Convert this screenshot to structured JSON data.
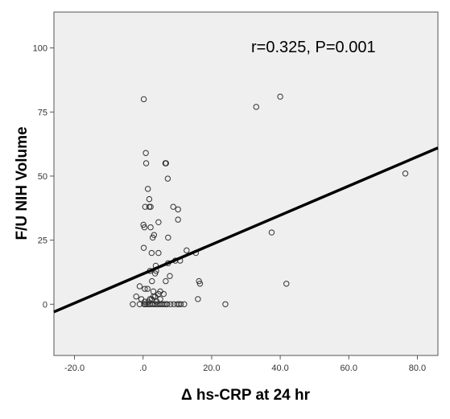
{
  "chart_data": {
    "type": "scatter",
    "title": "",
    "xlabel": "Δ hs-CRP at 24 hr",
    "ylabel": "F/U NIH Volume",
    "xlim": [
      -26,
      86
    ],
    "ylim": [
      -20,
      114
    ],
    "xticks": [
      -20,
      0,
      20,
      40,
      60,
      80
    ],
    "xtick_labels": [
      "-20.0",
      ".0",
      "20.0",
      "40.0",
      "60.0",
      "80.0"
    ],
    "yticks": [
      0,
      25,
      50,
      75,
      100
    ],
    "ytick_labels": [
      "0",
      "25",
      "50",
      "75",
      "100"
    ],
    "grid": false,
    "legend": "none",
    "background_color": "#efefef",
    "marker_color": "#333333",
    "annotation": "r=0.325, P=0.001",
    "fit_line": {
      "x": [
        -26,
        86
      ],
      "y": [
        -3,
        61
      ],
      "color": "#000000"
    },
    "series": [
      {
        "x": [
          0.2,
          0.8,
          0.9,
          1.8,
          2.2,
          6.5,
          33,
          40,
          1.4,
          6.7,
          6.6,
          7.2,
          0.6,
          1.8,
          0.1,
          0.4,
          8.8,
          10.2,
          4.5,
          10.2,
          2.2,
          3.2,
          7.3,
          0.2,
          2.8,
          12.7,
          15.4,
          76.5,
          37.5,
          4.5,
          2.5,
          3.7,
          7.3,
          9.4,
          3.8,
          10.8,
          16.3,
          16.6,
          41.8,
          2.0,
          3.5,
          2.6,
          7.8,
          6.6,
          -1.0,
          1.3,
          3.0,
          5.0,
          6.0,
          0.5,
          -2.0,
          3.5,
          2.5,
          4.5,
          5.0,
          1.5,
          3.0,
          -0.5,
          0.5,
          2.0,
          4.0,
          7.0,
          16.0,
          -3.0,
          -1.0,
          0.3,
          0.6,
          1.0,
          1.5,
          2.0,
          2.5,
          3.0,
          3.5,
          4.0,
          4.5,
          5.0,
          5.5,
          6.0,
          6.5,
          7.0,
          8.0,
          9.0,
          10.0,
          10.5,
          11.0,
          12.0,
          24.0
        ],
        "y": [
          80,
          59,
          55,
          41,
          38,
          55,
          77,
          81,
          45,
          55,
          55,
          49,
          38,
          38,
          31,
          30,
          38,
          37,
          32,
          33,
          30,
          27,
          26,
          22,
          26,
          21,
          20,
          51,
          28,
          20,
          20,
          15,
          16,
          17,
          13,
          17,
          9,
          8,
          8,
          13,
          12,
          9,
          11,
          9,
          7,
          6,
          5,
          5,
          4,
          6,
          3,
          3,
          2,
          4,
          2,
          1,
          3,
          2,
          1,
          2,
          1,
          0,
          2,
          0,
          0,
          0,
          0,
          0,
          0,
          0,
          0,
          0,
          0,
          0,
          0,
          0,
          0,
          0,
          0,
          0,
          0,
          0,
          0,
          0,
          0,
          0,
          0
        ]
      }
    ]
  }
}
